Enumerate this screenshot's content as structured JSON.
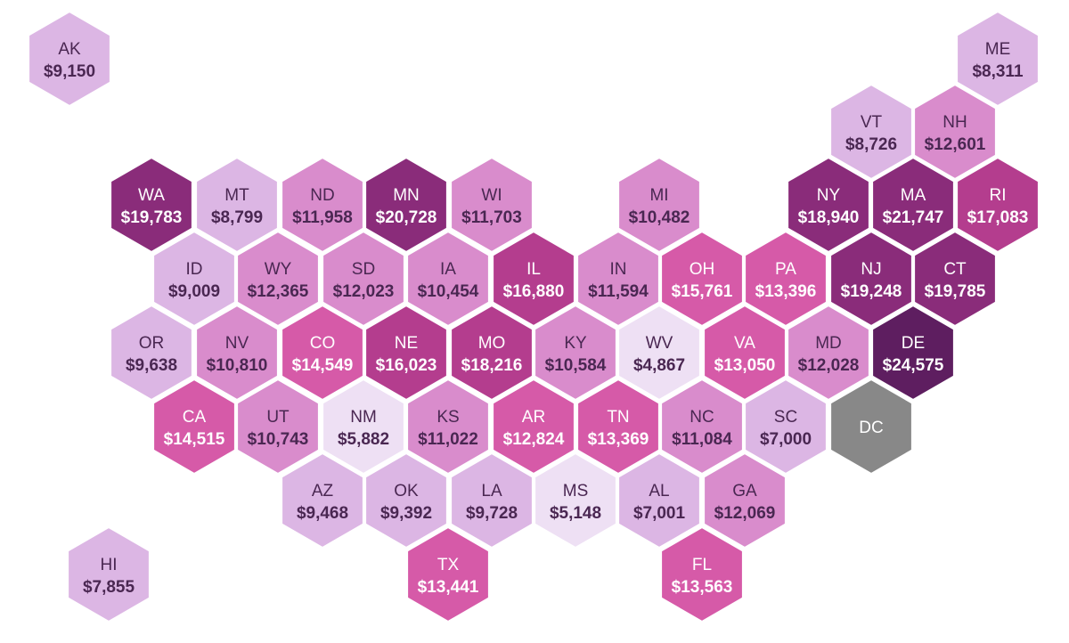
{
  "states": [
    {
      "abbr": "AK",
      "value": "$9,150",
      "amount": 9150
    },
    {
      "abbr": "ME",
      "value": "$8,311",
      "amount": 8311
    },
    {
      "abbr": "VT",
      "value": "$8,726",
      "amount": 8726
    },
    {
      "abbr": "NH",
      "value": "$12,601",
      "amount": 12601
    },
    {
      "abbr": "WA",
      "value": "$19,783",
      "amount": 19783
    },
    {
      "abbr": "MT",
      "value": "$8,799",
      "amount": 8799
    },
    {
      "abbr": "ND",
      "value": "$11,958",
      "amount": 11958
    },
    {
      "abbr": "MN",
      "value": "$20,728",
      "amount": 20728
    },
    {
      "abbr": "WI",
      "value": "$11,703",
      "amount": 11703
    },
    {
      "abbr": "MI",
      "value": "$10,482",
      "amount": 10482
    },
    {
      "abbr": "NY",
      "value": "$18,940",
      "amount": 18940
    },
    {
      "abbr": "MA",
      "value": "$21,747",
      "amount": 21747
    },
    {
      "abbr": "RI",
      "value": "$17,083",
      "amount": 17083
    },
    {
      "abbr": "ID",
      "value": "$9,009",
      "amount": 9009
    },
    {
      "abbr": "WY",
      "value": "$12,365",
      "amount": 12365
    },
    {
      "abbr": "SD",
      "value": "$12,023",
      "amount": 12023
    },
    {
      "abbr": "IA",
      "value": "$10,454",
      "amount": 10454
    },
    {
      "abbr": "IL",
      "value": "$16,880",
      "amount": 16880
    },
    {
      "abbr": "IN",
      "value": "$11,594",
      "amount": 11594
    },
    {
      "abbr": "OH",
      "value": "$15,761",
      "amount": 15761
    },
    {
      "abbr": "PA",
      "value": "$13,396",
      "amount": 13396
    },
    {
      "abbr": "NJ",
      "value": "$19,248",
      "amount": 19248
    },
    {
      "abbr": "CT",
      "value": "$19,785",
      "amount": 19785
    },
    {
      "abbr": "OR",
      "value": "$9,638",
      "amount": 9638
    },
    {
      "abbr": "NV",
      "value": "$10,810",
      "amount": 10810
    },
    {
      "abbr": "CO",
      "value": "$14,549",
      "amount": 14549
    },
    {
      "abbr": "NE",
      "value": "$16,023",
      "amount": 16023
    },
    {
      "abbr": "MO",
      "value": "$18,216",
      "amount": 18216
    },
    {
      "abbr": "KY",
      "value": "$10,584",
      "amount": 10584
    },
    {
      "abbr": "WV",
      "value": "$4,867",
      "amount": 4867
    },
    {
      "abbr": "VA",
      "value": "$13,050",
      "amount": 13050
    },
    {
      "abbr": "MD",
      "value": "$12,028",
      "amount": 12028
    },
    {
      "abbr": "DE",
      "value": "$24,575",
      "amount": 24575
    },
    {
      "abbr": "CA",
      "value": "$14,515",
      "amount": 14515
    },
    {
      "abbr": "UT",
      "value": "$10,743",
      "amount": 10743
    },
    {
      "abbr": "NM",
      "value": "$5,882",
      "amount": 5882
    },
    {
      "abbr": "KS",
      "value": "$11,022",
      "amount": 11022
    },
    {
      "abbr": "AR",
      "value": "$12,824",
      "amount": 12824
    },
    {
      "abbr": "TN",
      "value": "$13,369",
      "amount": 13369
    },
    {
      "abbr": "NC",
      "value": "$11,084",
      "amount": 11084
    },
    {
      "abbr": "SC",
      "value": "$7,000",
      "amount": 7000
    },
    {
      "abbr": "DC",
      "value": null,
      "amount": null
    },
    {
      "abbr": "AZ",
      "value": "$9,468",
      "amount": 9468
    },
    {
      "abbr": "OK",
      "value": "$9,392",
      "amount": 9392
    },
    {
      "abbr": "LA",
      "value": "$9,728",
      "amount": 9728
    },
    {
      "abbr": "MS",
      "value": "$5,148",
      "amount": 5148
    },
    {
      "abbr": "AL",
      "value": "$7,001",
      "amount": 7001
    },
    {
      "abbr": "GA",
      "value": "$12,069",
      "amount": 12069
    },
    {
      "abbr": "HI",
      "value": "$7,855",
      "amount": 7855
    },
    {
      "abbr": "TX",
      "value": "$13,441",
      "amount": 13441
    },
    {
      "abbr": "FL",
      "value": "$13,563",
      "amount": 13563
    }
  ],
  "colors": {
    "scale": [
      "#eee0f4",
      "#dcb6e4",
      "#d98ccc",
      "#d65aa8",
      "#b43d8e",
      "#8a2c7a",
      "#5e1e60"
    ],
    "no_data": "#888888",
    "light_text": "#4a2752",
    "dark_text": "#ffffff"
  }
}
